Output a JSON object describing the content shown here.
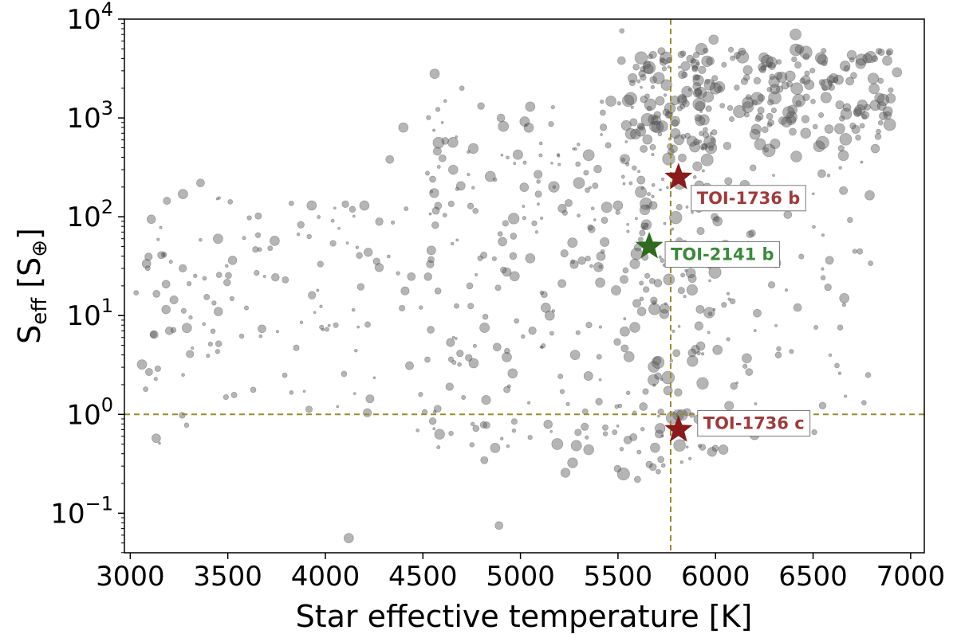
{
  "chart_data": {
    "type": "scatter",
    "xlabel": "Star effective temperature [K]",
    "ylabel": {
      "main": "S",
      "sub": "eff",
      "bracket": "[S",
      "bracket_sub": "⊕",
      "close": "]"
    },
    "xlim": [
      2970,
      7070
    ],
    "ylim_log10": [
      -1.4,
      4.0
    ],
    "y_scale": "log",
    "x_ticks": [
      3000,
      3500,
      4000,
      4500,
      5000,
      5500,
      6000,
      6500,
      7000
    ],
    "y_ticks": [
      {
        "base": "10",
        "exp": "−1",
        "log10": -1
      },
      {
        "base": "10",
        "exp": "0",
        "log10": 0
      },
      {
        "base": "10",
        "exp": "1",
        "log10": 1
      },
      {
        "base": "10",
        "exp": "2",
        "log10": 2
      },
      {
        "base": "10",
        "exp": "3",
        "log10": 3
      },
      {
        "base": "10",
        "exp": "4",
        "log10": 4
      }
    ],
    "reference_lines": {
      "vertical_x": 5770,
      "horizontal_y": 1.0,
      "color": "#9a8a2a"
    },
    "marker_color": "#5a5a5a",
    "highlighted": [
      {
        "name": "TOI-1736 b",
        "teff": 5810,
        "seff": 250,
        "color": "#8b1a1a",
        "label_color": "#a03a3a"
      },
      {
        "name": "TOI-2141 b",
        "teff": 5660,
        "seff": 50,
        "color": "#2e6b1f",
        "label_color": "#3a8a3a"
      },
      {
        "name": "TOI-1736 c",
        "teff": 5810,
        "seff": 0.7,
        "color": "#8b1a1a",
        "label_color": "#a03a3a"
      }
    ],
    "generated_cloud": [
      {
        "tmin": 3050,
        "tmax": 4500,
        "lmin": -0.3,
        "lmax": 2.2,
        "n": 130,
        "seed": 11,
        "rmin": 1.5,
        "rmax": 5.5
      },
      {
        "tmin": 4500,
        "tmax": 5500,
        "lmin": -0.6,
        "lmax": 3.2,
        "n": 200,
        "seed": 23,
        "rmin": 1.5,
        "rmax": 7
      },
      {
        "tmin": 5500,
        "tmax": 6000,
        "lmin": -0.7,
        "lmax": 3.6,
        "n": 220,
        "seed": 37,
        "rmin": 1.5,
        "rmax": 8
      },
      {
        "tmin": 5600,
        "tmax": 6900,
        "lmin": 2.6,
        "lmax": 3.7,
        "n": 230,
        "seed": 41,
        "rmin": 3,
        "rmax": 8
      },
      {
        "tmin": 6000,
        "tmax": 6800,
        "lmin": -0.3,
        "lmax": 2.6,
        "n": 60,
        "seed": 53,
        "rmin": 1.5,
        "rmax": 6
      }
    ],
    "points": [
      [
        4560,
        2800,
        6
      ],
      [
        5520,
        7600,
        3
      ],
      [
        5990,
        6200,
        6
      ],
      [
        6410,
        7000,
        7
      ],
      [
        6880,
        3800,
        6
      ],
      [
        6930,
        2900,
        6
      ],
      [
        6840,
        1600,
        6
      ],
      [
        6670,
        1100,
        7
      ],
      [
        4700,
        2000,
        3
      ],
      [
        4900,
        1000,
        5
      ],
      [
        5050,
        1300,
        6
      ],
      [
        4580,
        560,
        7
      ],
      [
        4550,
        240,
        4
      ],
      [
        4330,
        380,
        5
      ],
      [
        4200,
        130,
        6
      ],
      [
        3930,
        130,
        6
      ],
      [
        3740,
        57,
        6
      ],
      [
        3450,
        60,
        6
      ],
      [
        3270,
        170,
        6
      ],
      [
        3360,
        220,
        5
      ],
      [
        3030,
        17,
        3
      ],
      [
        3060,
        3.2,
        6
      ],
      [
        3200,
        7,
        5
      ],
      [
        3290,
        7.5,
        6
      ],
      [
        4120,
        0.056,
        6
      ],
      [
        4890,
        0.075,
        5
      ],
      [
        5600,
        0.22,
        4
      ],
      [
        5720,
        0.35,
        4
      ],
      [
        6200,
        0.62,
        6
      ],
      [
        6040,
        0.44,
        6
      ],
      [
        5690,
        0.46,
        6
      ],
      [
        5630,
        1.2,
        5
      ],
      [
        5550,
        0.55,
        5
      ],
      [
        4930,
        3.8,
        6
      ],
      [
        4960,
        2.6,
        6
      ],
      [
        5880,
        4.2,
        5
      ],
      [
        6010,
        4.5,
        6
      ],
      [
        6160,
        3.7,
        6
      ],
      [
        6660,
        15,
        6
      ],
      [
        6310,
        34,
        6
      ],
      [
        6050,
        52,
        6
      ],
      [
        6010,
        90,
        6
      ],
      [
        6150,
        210,
        6
      ],
      [
        6370,
        105,
        5
      ],
      [
        6790,
        165,
        6
      ],
      [
        5300,
        220,
        7
      ],
      [
        5350,
        420,
        7
      ],
      [
        5500,
        130,
        6
      ],
      [
        5400,
        31,
        6
      ],
      [
        5490,
        18,
        6
      ],
      [
        4970,
        25,
        6
      ],
      [
        4740,
        20,
        4
      ],
      [
        5050,
        38,
        6
      ],
      [
        5280,
        4,
        6
      ],
      [
        5700,
        3.5,
        5
      ],
      [
        4880,
        4.8,
        5
      ],
      [
        5130,
        12,
        6
      ],
      [
        4760,
        3.3,
        6
      ],
      [
        5150,
        10,
        6
      ],
      [
        4400,
        800,
        6
      ]
    ]
  }
}
